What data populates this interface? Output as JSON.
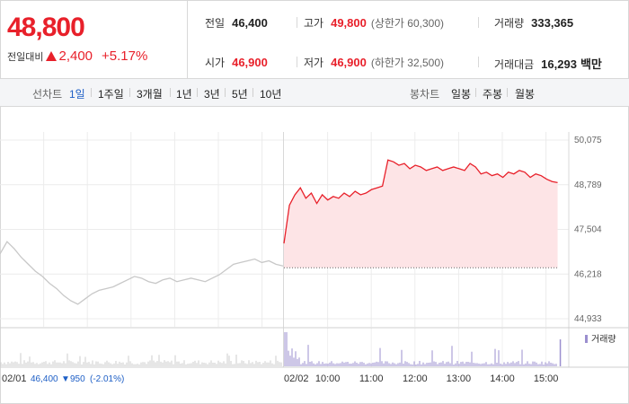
{
  "price": {
    "current": "48,800",
    "change_label": "전일대비",
    "change_value": "2,400",
    "change_pct": "+5.17%"
  },
  "stats": {
    "prev_close": {
      "label": "전일",
      "value": "46,400"
    },
    "high": {
      "label": "고가",
      "value": "49,800",
      "sub": "(상한가 60,300)"
    },
    "volume": {
      "label": "거래량",
      "value": "333,365"
    },
    "open": {
      "label": "시가",
      "value": "46,900"
    },
    "low": {
      "label": "저가",
      "value": "46,900",
      "sub": "(하한가 32,500)"
    },
    "trade_amount": {
      "label": "거래대금",
      "value": "16,293",
      "unit": "백만"
    }
  },
  "period_bar": {
    "label": "선차트",
    "options": [
      "1일",
      "1주일",
      "3개월",
      "1년",
      "3년",
      "5년",
      "10년"
    ],
    "active": "1일",
    "candle_label": "봉차트",
    "candle_options": [
      "일봉",
      "주봉",
      "월봉"
    ]
  },
  "colors": {
    "up": "#e8202a",
    "down": "#1e5fc6",
    "prev_line": "#c8c8c8",
    "fill": "#fde4e6",
    "volume_today": "#9b8fcf",
    "volume_prev": "#cccccc"
  },
  "chart_data": {
    "type": "line",
    "ylim": [
      44933,
      50075
    ],
    "y_ticks": [
      "50,075",
      "48,789",
      "47,504",
      "46,218",
      "44,933"
    ],
    "y_tick_values": [
      50075,
      48789,
      47504,
      46218,
      44933
    ],
    "x_ticks": [
      "10:00",
      "11:00",
      "12:00",
      "13:00",
      "14:00",
      "15:00"
    ],
    "x_tick_minutes": [
      60,
      120,
      180,
      240,
      300,
      360
    ],
    "session_minutes": 380,
    "baseline": 46400,
    "previous_day": {
      "date": "02/01",
      "info_price": "46,400",
      "info_change": "950",
      "info_pct": "(-2.01%)",
      "values": [
        46800,
        47150,
        46950,
        46700,
        46500,
        46300,
        46150,
        45950,
        45800,
        45600,
        45450,
        45350,
        45500,
        45650,
        45750,
        45800,
        45850,
        45950,
        46050,
        46150,
        46100,
        46000,
        45950,
        46050,
        46100,
        46000,
        46050,
        46100,
        46050,
        46000,
        46100,
        46200,
        46350,
        46500,
        46550,
        46600,
        46650,
        46550,
        46600,
        46500,
        46450
      ]
    },
    "today": {
      "date": "02/02",
      "values": [
        47100,
        48200,
        48500,
        48700,
        48400,
        48550,
        48250,
        48500,
        48350,
        48450,
        48400,
        48550,
        48450,
        48600,
        48500,
        48550,
        48650,
        48700,
        48750,
        49500,
        49450,
        49350,
        49400,
        49250,
        49350,
        49300,
        49200,
        49250,
        49300,
        49200,
        49250,
        49300,
        49250,
        49200,
        49400,
        49300,
        49100,
        49150,
        49050,
        49100,
        49000,
        49150,
        49100,
        49200,
        49150,
        49000,
        49100,
        49050,
        48950,
        48880,
        48850
      ]
    },
    "volume_label": "거래량"
  }
}
